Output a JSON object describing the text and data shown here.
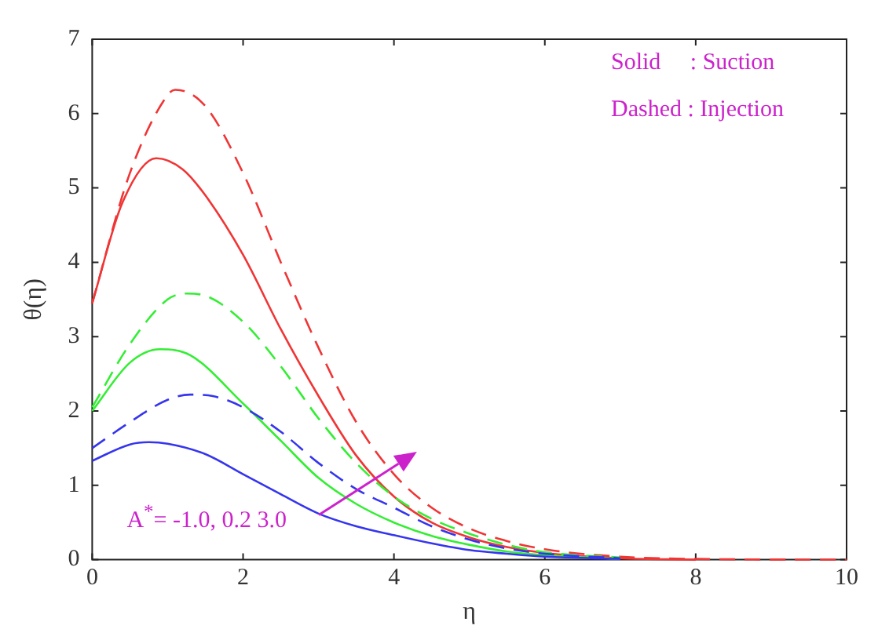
{
  "chart_data": {
    "type": "line",
    "xlabel": "η",
    "ylabel": "θ(η)",
    "xlim": [
      0,
      10
    ],
    "ylim": [
      0,
      7
    ],
    "xticks": [
      0,
      2,
      4,
      6,
      8,
      10
    ],
    "yticks": [
      0,
      1,
      2,
      3,
      4,
      5,
      6,
      7
    ],
    "grid": false,
    "legend": false,
    "marker": "none",
    "annotations": [
      "Solid     : Suction",
      "Dashed : Injection",
      "A$^{*}$= -1.0, 0.2 3.0"
    ],
    "series": [
      {
        "color": "#3535ee",
        "line_style": "solid",
        "x": [
          0,
          0.5,
          0.75,
          1,
          1.5,
          2,
          2.5,
          3,
          3.5,
          4,
          4.5,
          5,
          5.5,
          6,
          7
        ],
        "values": [
          1.33,
          1.55,
          1.58,
          1.56,
          1.42,
          1.15,
          0.88,
          0.62,
          0.45,
          0.33,
          0.22,
          0.13,
          0.08,
          0.04,
          0.01
        ]
      },
      {
        "color": "#3535ee",
        "line_style": "dashed",
        "x": [
          0,
          0.5,
          1,
          1.3,
          1.6,
          2,
          2.5,
          3,
          3.5,
          4,
          4.5,
          5,
          5.5,
          6,
          7
        ],
        "values": [
          1.5,
          1.85,
          2.15,
          2.22,
          2.2,
          2.05,
          1.72,
          1.3,
          0.95,
          0.7,
          0.45,
          0.27,
          0.15,
          0.08,
          0.02
        ]
      },
      {
        "color": "#33ee33",
        "line_style": "solid",
        "x": [
          0,
          0.5,
          0.9,
          1.3,
          2,
          2.5,
          3,
          3.5,
          4,
          4.5,
          5,
          5.5,
          6,
          7
        ],
        "values": [
          2.0,
          2.65,
          2.83,
          2.75,
          2.1,
          1.6,
          1.1,
          0.75,
          0.5,
          0.32,
          0.2,
          0.11,
          0.06,
          0.01
        ]
      },
      {
        "color": "#33ee33",
        "line_style": "dashed",
        "x": [
          0,
          0.5,
          1,
          1.25,
          1.5,
          2,
          2.5,
          3,
          3.5,
          4,
          4.5,
          5,
          5.5,
          6,
          7
        ],
        "values": [
          2.05,
          2.9,
          3.5,
          3.58,
          3.55,
          3.2,
          2.6,
          1.9,
          1.3,
          0.85,
          0.55,
          0.35,
          0.2,
          0.1,
          0.03
        ]
      },
      {
        "color": "#f03535",
        "line_style": "solid",
        "x": [
          0,
          0.4,
          0.85,
          1.2,
          1.5,
          2,
          2.5,
          3,
          3.5,
          4,
          4.5,
          5,
          5.5,
          6,
          7,
          8
        ],
        "values": [
          3.45,
          4.8,
          5.4,
          5.25,
          4.9,
          4.1,
          3.1,
          2.2,
          1.4,
          0.85,
          0.5,
          0.3,
          0.17,
          0.09,
          0.02,
          0
        ]
      },
      {
        "color": "#f03535",
        "line_style": "dashed",
        "x": [
          0,
          0.5,
          1,
          1.1,
          1.5,
          2,
          2.5,
          3,
          3.5,
          4,
          4.5,
          5,
          5.5,
          6,
          7,
          8,
          10
        ],
        "values": [
          3.45,
          5.2,
          6.25,
          6.32,
          6.1,
          5.2,
          4.0,
          2.85,
          1.85,
          1.15,
          0.7,
          0.42,
          0.25,
          0.14,
          0.04,
          0.01,
          0
        ]
      }
    ]
  }
}
